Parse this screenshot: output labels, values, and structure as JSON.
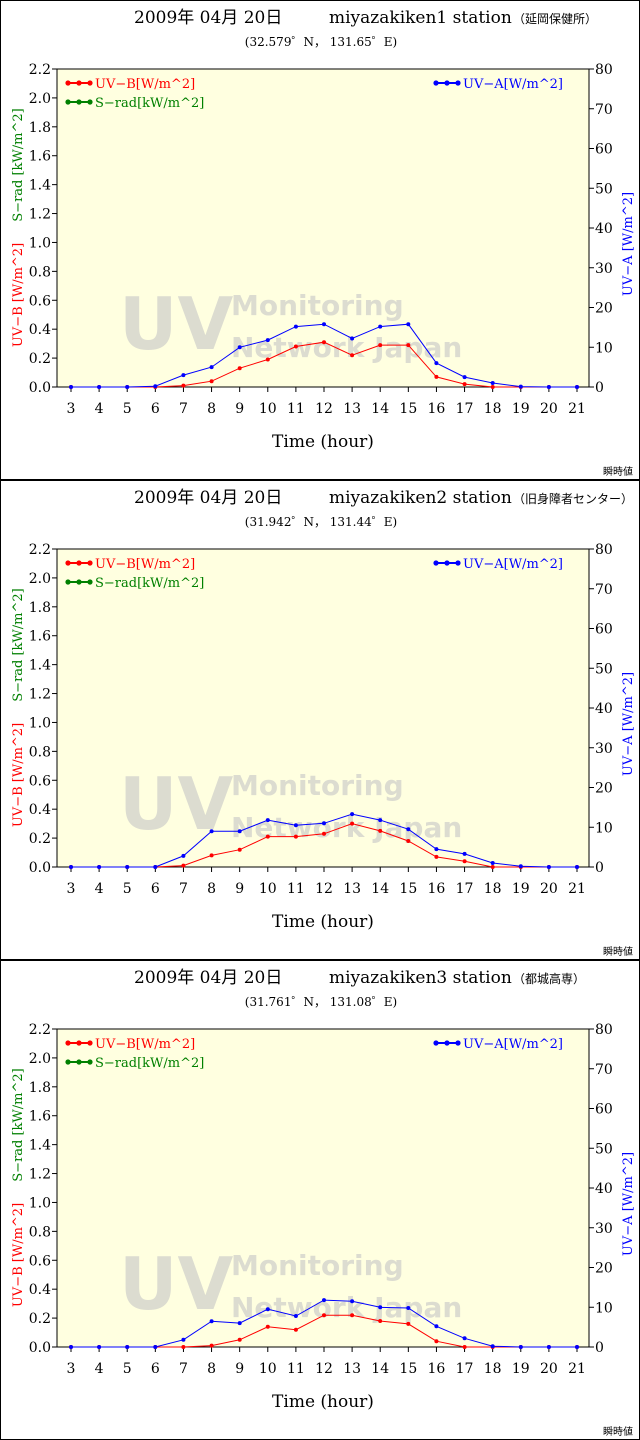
{
  "colors": {
    "uvb": "#ff0000",
    "srad": "#008000",
    "uva": "#0000ff",
    "plot_bg": "#ffffe0",
    "watermark": "#dcdcd0"
  },
  "watermark": {
    "big": "UV",
    "line1": "Monitoring",
    "line2": "Network Japan"
  },
  "chart_data": [
    {
      "type": "line",
      "title": "2009年  04月  20日",
      "station": "miyazakiken1  station",
      "station_jp": "（延岡保健所）",
      "coordinates": "(32.579゜N， 131.65゜E)",
      "xlabel": "Time (hour)",
      "ylabel_left": "UV−B [W/m^2]",
      "ylabel_left2": "S−rad [kW/m^2]",
      "ylabel_right": "UV−A [W/m^2]",
      "note": "瞬時値",
      "x": [
        3,
        4,
        5,
        6,
        7,
        8,
        9,
        10,
        11,
        12,
        13,
        14,
        15,
        16,
        17,
        18,
        19,
        20,
        21
      ],
      "xlim": [
        3,
        21
      ],
      "ylim_left": [
        0,
        2.2
      ],
      "ylim_right": [
        0,
        80
      ],
      "left_ticks": [
        "0.0",
        "0.2",
        "0.4",
        "0.6",
        "0.8",
        "1.0",
        "1.2",
        "1.4",
        "1.6",
        "1.8",
        "2.0",
        "2.2"
      ],
      "right_ticks": [
        "0",
        "10",
        "20",
        "30",
        "40",
        "50",
        "60",
        "70",
        "80"
      ],
      "legend_left": [
        "UV−B[W/m^2]",
        "S−rad[kW/m^2]"
      ],
      "legend_right": "UV−A[W/m^2]",
      "grid": false,
      "series": [
        {
          "name": "UV−B[W/m^2]",
          "axis": "left",
          "color": "#ff0000",
          "values": [
            0,
            0,
            0,
            0,
            0.01,
            0.04,
            0.13,
            0.19,
            0.28,
            0.31,
            0.22,
            0.29,
            0.29,
            0.07,
            0.02,
            0,
            0,
            0,
            0
          ]
        },
        {
          "name": "UV−A[W/m^2]",
          "axis": "right",
          "color": "#0000ff",
          "values": [
            0,
            0,
            0,
            0.2,
            3,
            5,
            10,
            11.8,
            15.2,
            15.8,
            12.2,
            15.2,
            15.8,
            6,
            2.5,
            1,
            0.1,
            0,
            0
          ]
        }
      ]
    },
    {
      "type": "line",
      "title": "2009年  04月  20日",
      "station": "miyazakiken2  station",
      "station_jp": "（旧身障者センター）",
      "coordinates": "(31.942゜N， 131.44゜E)",
      "xlabel": "Time (hour)",
      "ylabel_left": "UV−B [W/m^2]",
      "ylabel_left2": "S−rad [kW/m^2]",
      "ylabel_right": "UV−A [W/m^2]",
      "note": "瞬時値",
      "x": [
        3,
        4,
        5,
        6,
        7,
        8,
        9,
        10,
        11,
        12,
        13,
        14,
        15,
        16,
        17,
        18,
        19,
        20,
        21
      ],
      "xlim": [
        3,
        21
      ],
      "ylim_left": [
        0,
        2.2
      ],
      "ylim_right": [
        0,
        80
      ],
      "left_ticks": [
        "0.0",
        "0.2",
        "0.4",
        "0.6",
        "0.8",
        "1.0",
        "1.2",
        "1.4",
        "1.6",
        "1.8",
        "2.0",
        "2.2"
      ],
      "right_ticks": [
        "0",
        "10",
        "20",
        "30",
        "40",
        "50",
        "60",
        "70",
        "80"
      ],
      "legend_left": [
        "UV−B[W/m^2]",
        "S−rad[kW/m^2]"
      ],
      "legend_right": "UV−A[W/m^2]",
      "grid": false,
      "series": [
        {
          "name": "UV−B[W/m^2]",
          "axis": "left",
          "color": "#ff0000",
          "values": [
            0,
            0,
            0,
            0,
            0.01,
            0.08,
            0.12,
            0.21,
            0.21,
            0.23,
            0.3,
            0.25,
            0.18,
            0.07,
            0.04,
            0,
            0,
            0,
            0
          ]
        },
        {
          "name": "UV−A[W/m^2]",
          "axis": "right",
          "color": "#0000ff",
          "values": [
            0,
            0,
            0,
            0,
            2.8,
            9,
            9,
            11.8,
            10.5,
            11,
            13.3,
            11.8,
            9.5,
            4.5,
            3.3,
            1,
            0.2,
            0,
            0
          ]
        }
      ]
    },
    {
      "type": "line",
      "title": "2009年  04月  20日",
      "station": "miyazakiken3  station",
      "station_jp": "（都城高専）",
      "coordinates": "(31.761゜N， 131.08゜E)",
      "xlabel": "Time (hour)",
      "ylabel_left": "UV−B [W/m^2]",
      "ylabel_left2": "S−rad [kW/m^2]",
      "ylabel_right": "UV−A [W/m^2]",
      "note": "瞬時値",
      "x": [
        3,
        4,
        5,
        6,
        7,
        8,
        9,
        10,
        11,
        12,
        13,
        14,
        15,
        16,
        17,
        18,
        19,
        20,
        21
      ],
      "xlim": [
        3,
        21
      ],
      "ylim_left": [
        0,
        2.2
      ],
      "ylim_right": [
        0,
        80
      ],
      "left_ticks": [
        "0.0",
        "0.2",
        "0.4",
        "0.6",
        "0.8",
        "1.0",
        "1.2",
        "1.4",
        "1.6",
        "1.8",
        "2.0",
        "2.2"
      ],
      "right_ticks": [
        "0",
        "10",
        "20",
        "30",
        "40",
        "50",
        "60",
        "70",
        "80"
      ],
      "legend_left": [
        "UV−B[W/m^2]",
        "S−rad[kW/m^2]"
      ],
      "legend_right": "UV−A[W/m^2]",
      "grid": false,
      "series": [
        {
          "name": "UV−B[W/m^2]",
          "axis": "left",
          "color": "#ff0000",
          "values": [
            0,
            0,
            0,
            0,
            0,
            0.01,
            0.05,
            0.14,
            0.12,
            0.22,
            0.22,
            0.18,
            0.16,
            0.04,
            0,
            0,
            0,
            0,
            0
          ]
        },
        {
          "name": "UV−A[W/m^2]",
          "axis": "right",
          "color": "#0000ff",
          "values": [
            0,
            0,
            0,
            0,
            1.8,
            6.5,
            6,
            9.5,
            7.8,
            11.8,
            11.5,
            10,
            9.8,
            5.2,
            2.2,
            0.2,
            0,
            0,
            0
          ]
        }
      ]
    }
  ]
}
